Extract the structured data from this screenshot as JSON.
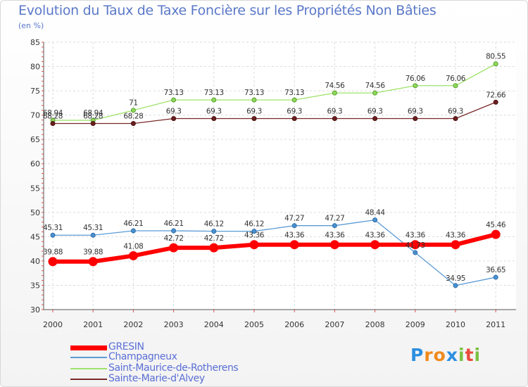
{
  "title": "Evolution du Taux de Taxe Foncière sur les Propriétés Non Bâties",
  "subtitle": "(en %)",
  "logo": {
    "letters": [
      "P",
      "r",
      "o",
      "x",
      "i",
      "t",
      "i"
    ],
    "colors": [
      "#2d8fe0",
      "#f08a1c",
      "#f08a1c",
      "#2d8fe0",
      "#7ac142",
      "#e84c3d",
      "#7ac142"
    ]
  },
  "chart_data": {
    "type": "line",
    "title": "Evolution du Taux de Taxe Foncière sur les Propriétés Non Bâties",
    "ylabel": "(en %)",
    "xlabel": "",
    "categories": [
      "2000",
      "2001",
      "2002",
      "2003",
      "2004",
      "2005",
      "2006",
      "2007",
      "2008",
      "2009",
      "2010",
      "2011"
    ],
    "ylim": [
      30,
      85
    ],
    "yticks": [
      30,
      35,
      40,
      45,
      50,
      55,
      60,
      65,
      70,
      75,
      80,
      85
    ],
    "grid": true,
    "series": [
      {
        "name": "GRESIN",
        "color": "#ff0000",
        "values": [
          39.88,
          39.88,
          41.08,
          42.72,
          42.72,
          43.36,
          43.36,
          43.36,
          43.36,
          43.36,
          43.36,
          45.46
        ],
        "labels": [
          "39.88",
          "39.88",
          "41.08",
          "42.72",
          "42.72",
          "43.36",
          "43.36",
          "43.36",
          "43.36",
          "43.36",
          "43.36",
          "45.46"
        ]
      },
      {
        "name": "Champagneux",
        "color": "#5b9bd5",
        "values": [
          45.31,
          45.31,
          46.21,
          46.21,
          46.12,
          46.12,
          47.27,
          47.27,
          48.44,
          41.73,
          34.95,
          36.65
        ],
        "labels": [
          "45.31",
          "45.31",
          "46.21",
          "46.21",
          "46.12",
          "46.12",
          "47.27",
          "47.27",
          "48.44",
          "41.73",
          "34.95",
          "36.65"
        ]
      },
      {
        "name": "Saint-Maurice-de-Rotherens",
        "color": "#9ee36a",
        "values": [
          68.94,
          68.94,
          71,
          73.13,
          73.13,
          73.13,
          73.13,
          74.56,
          74.56,
          76.06,
          76.06,
          80.55
        ],
        "labels": [
          "68.94",
          "68.94",
          "71",
          "73.13",
          "73.13",
          "73.13",
          "73.13",
          "74.56",
          "74.56",
          "76.06",
          "76.06",
          "80.55"
        ]
      },
      {
        "name": "Sainte-Marie-d'Alvey",
        "color": "#7a2a2a",
        "values": [
          68.28,
          68.28,
          68.28,
          69.3,
          69.3,
          69.3,
          69.3,
          69.3,
          69.3,
          69.3,
          69.3,
          72.66
        ],
        "labels": [
          "68.28",
          "68.28",
          "68.28",
          "69.3",
          "69.3",
          "69.3",
          "69.3",
          "69.3",
          "69.3",
          "69.3",
          "69.3",
          "72.66"
        ]
      }
    ]
  }
}
